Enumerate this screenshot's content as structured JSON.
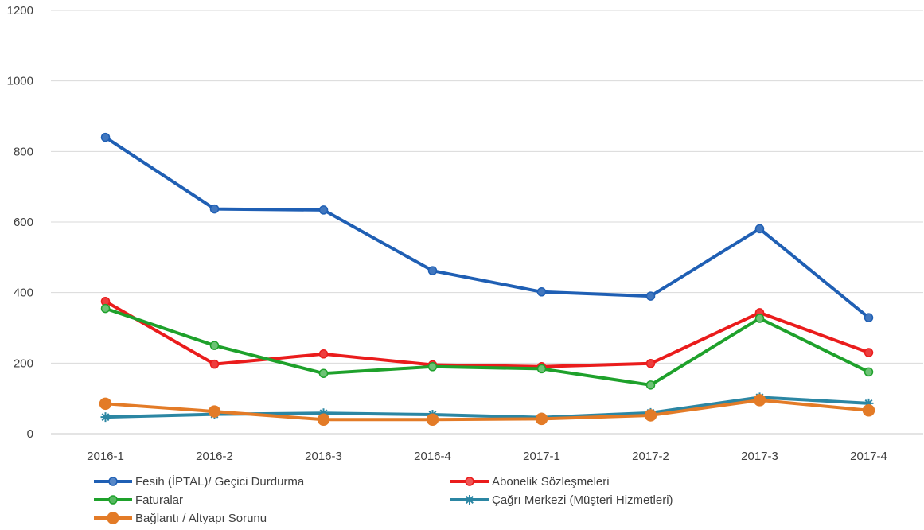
{
  "chart_data": {
    "type": "line",
    "title": "",
    "xlabel": "",
    "ylabel": "",
    "categories": [
      "2016-1",
      "2016-2",
      "2016-3",
      "2016-4",
      "2017-1",
      "2017-2",
      "2017-3",
      "2017-4"
    ],
    "ylim": [
      0,
      1200
    ],
    "yticks": [
      "0",
      "200",
      "400",
      "600",
      "800",
      "1000",
      "1200"
    ],
    "grid": "horizontal",
    "legend_position": "bottom",
    "series": [
      {
        "name": "Fesih (İPTAL)/ Geçici Durdurma",
        "color": "#1f5fb4",
        "marker": "circle",
        "values": [
          840,
          637,
          634,
          462,
          402,
          390,
          581,
          329
        ]
      },
      {
        "name": "Abonelik Sözleşmeleri",
        "color": "#ea1c1c",
        "marker": "circle",
        "values": [
          375,
          197,
          226,
          195,
          190,
          199,
          343,
          230
        ]
      },
      {
        "name": "Faturalar",
        "color": "#1ea12b",
        "marker": "circle",
        "values": [
          355,
          250,
          171,
          190,
          184,
          138,
          327,
          175
        ]
      },
      {
        "name": "Çağrı Merkezi (Müşteri Hizmetleri)",
        "color": "#2b86a3",
        "marker": "star",
        "values": [
          47,
          55,
          58,
          54,
          46,
          59,
          103,
          86
        ]
      },
      {
        "name": "Bağlantı / Altyapı Sorunu",
        "color": "#e37b27",
        "marker": "circle",
        "values": [
          85,
          63,
          40,
          40,
          42,
          52,
          95,
          66
        ]
      }
    ]
  }
}
